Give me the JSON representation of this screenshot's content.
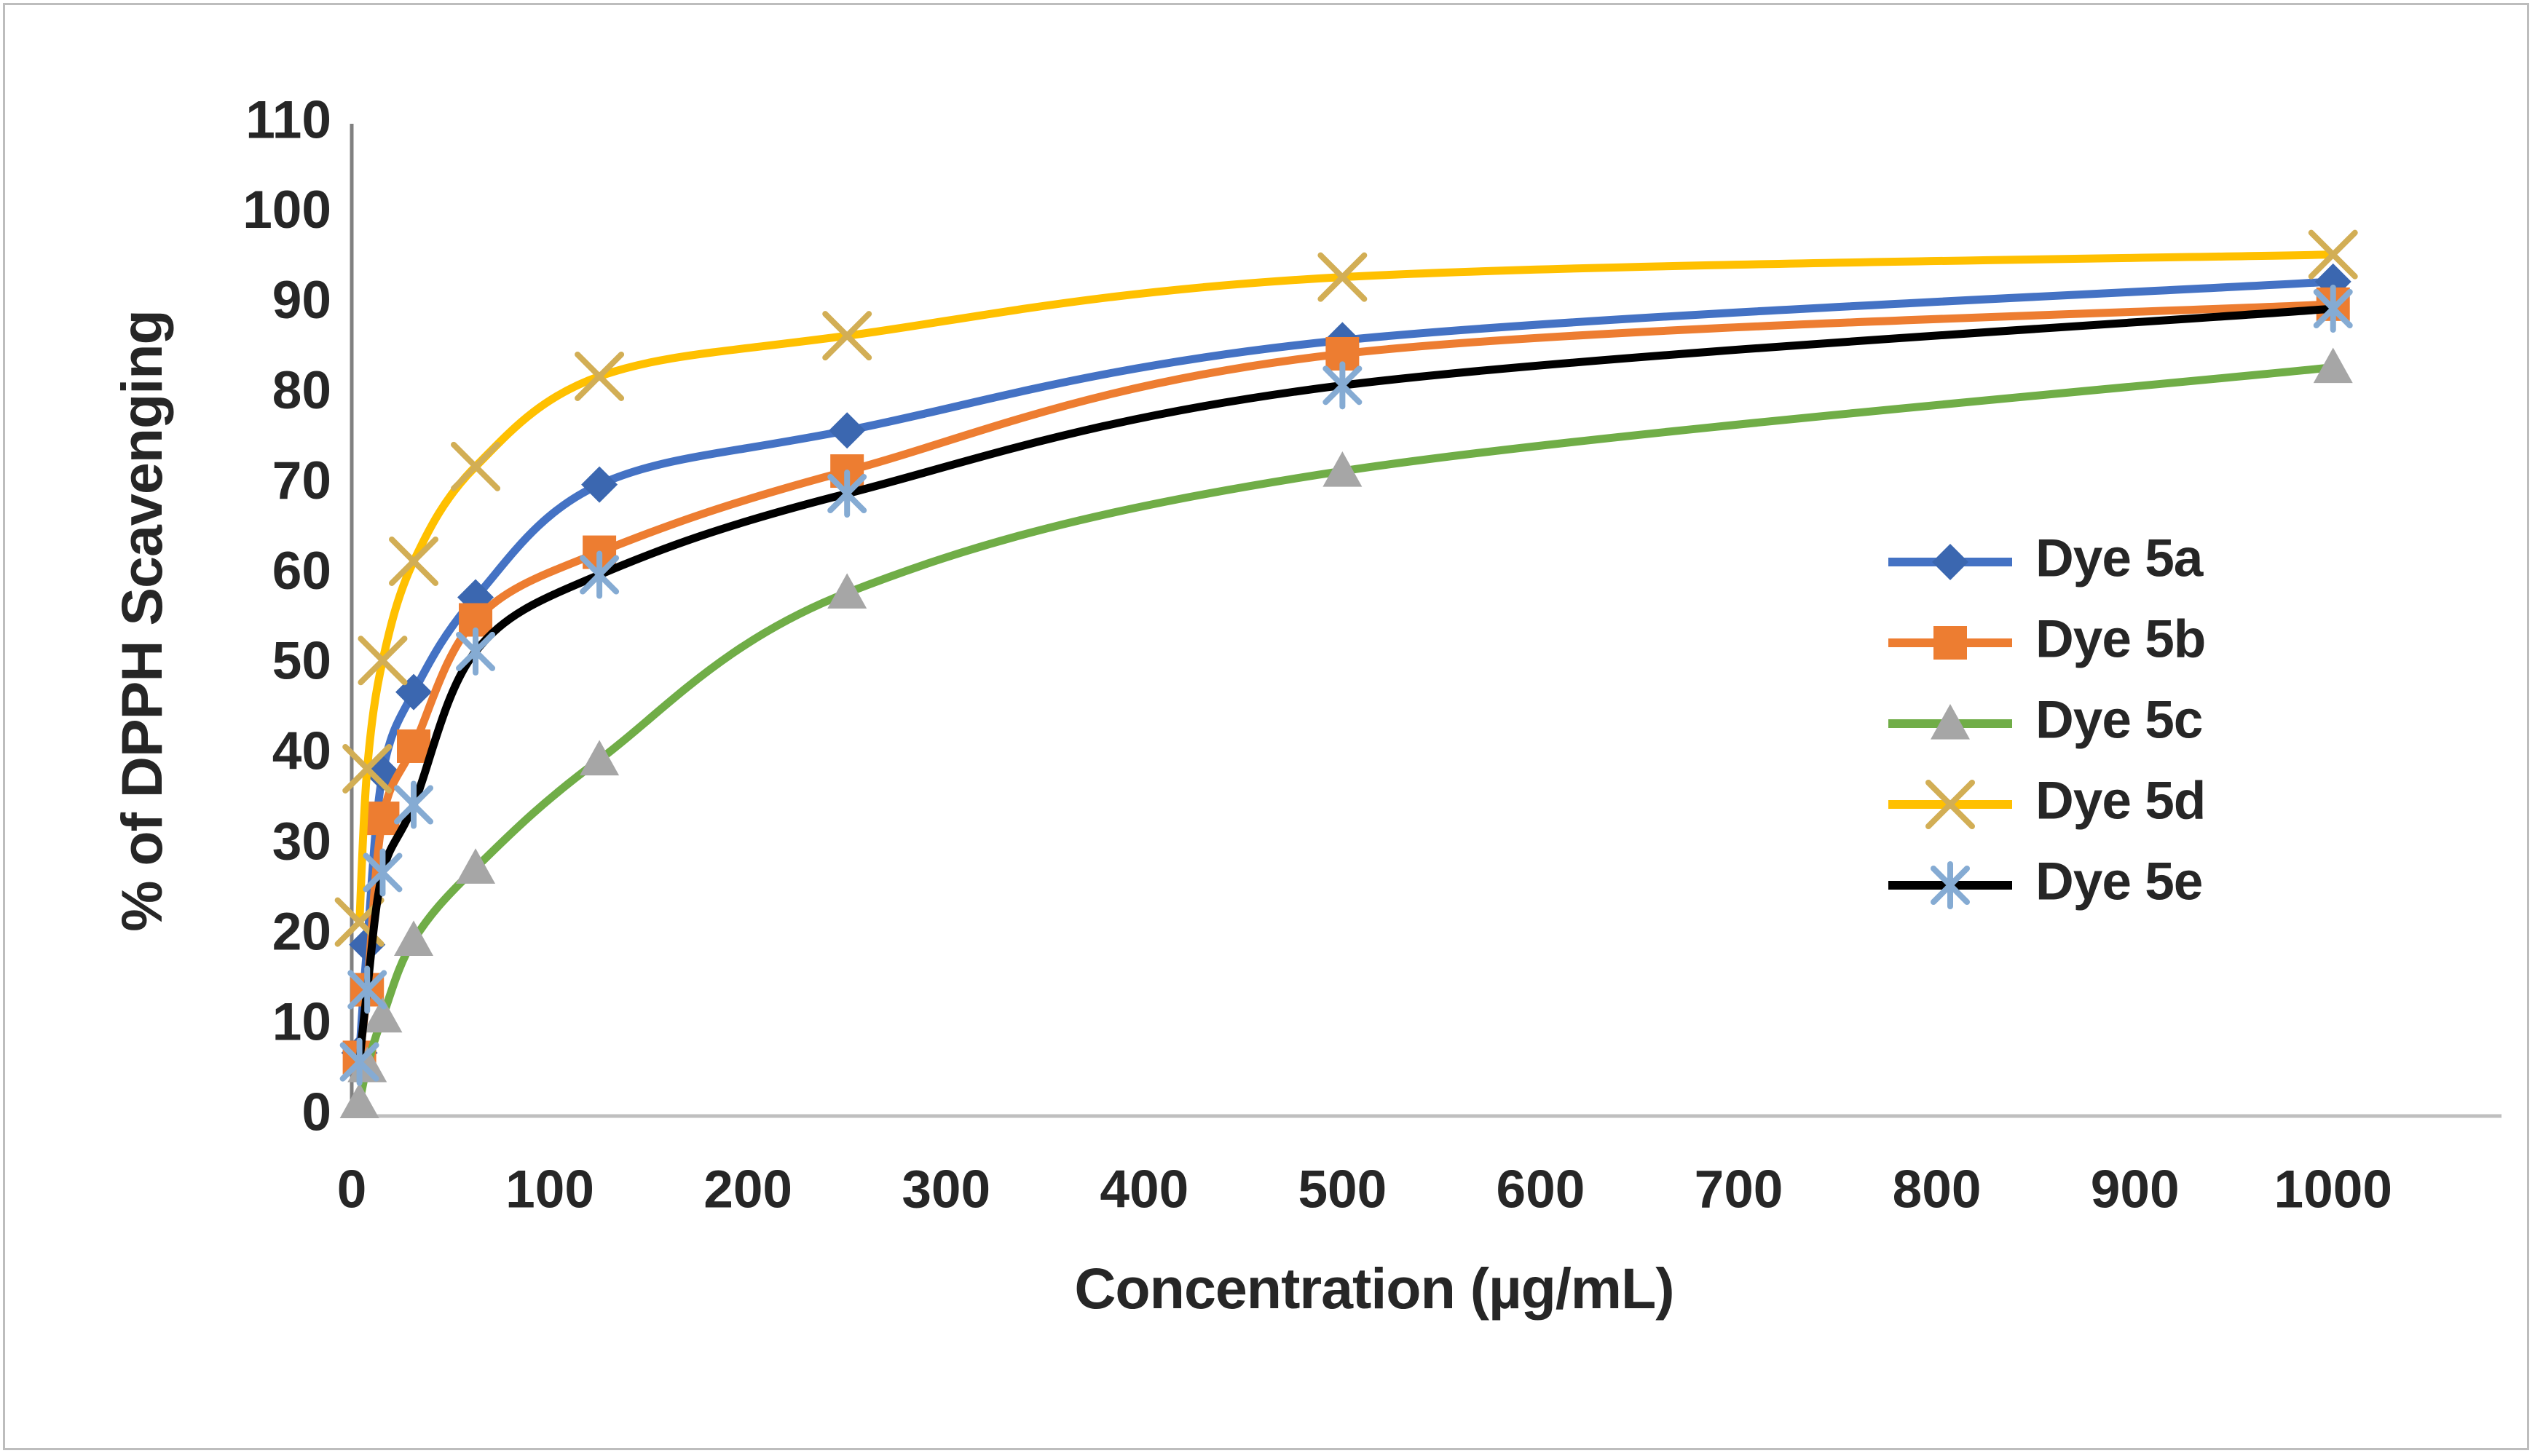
{
  "chart_data": {
    "type": "line",
    "title": "",
    "xlabel": "Concentration (µg/mL)",
    "ylabel": "% of DPPH  Scavenging",
    "x": [
      3.9,
      7.8,
      15.6,
      31.25,
      62.5,
      125,
      250,
      500,
      1000
    ],
    "x_tick_labels": [
      "0",
      "100",
      "200",
      "300",
      "400",
      "500",
      "600",
      "700",
      "800",
      "900",
      "1000"
    ],
    "x_ticks": [
      0,
      100,
      200,
      300,
      400,
      500,
      600,
      700,
      800,
      900,
      1000
    ],
    "y_tick_labels": [
      "0",
      "10",
      "20",
      "30",
      "40",
      "50",
      "60",
      "70",
      "80",
      "90",
      "100",
      "110"
    ],
    "y_ticks": [
      0,
      10,
      20,
      30,
      40,
      50,
      60,
      70,
      80,
      90,
      100,
      110
    ],
    "xlim": [
      0,
      1085
    ],
    "ylim": [
      0,
      110
    ],
    "grid": false,
    "smooth_lines": true,
    "legend_position": "middle-right",
    "series": [
      {
        "name": "Dye 5a",
        "line_color": "#4472C4",
        "marker": "diamond",
        "marker_color": "#3B67B0",
        "values": [
          7,
          19,
          38,
          47,
          57.5,
          70,
          76,
          86,
          92.5
        ]
      },
      {
        "name": "Dye 5b",
        "line_color": "#ED7D31",
        "marker": "square",
        "marker_color": "#ED7D31",
        "values": [
          6.5,
          14,
          33,
          41,
          55,
          62.5,
          71.5,
          84.5,
          90
        ]
      },
      {
        "name": "Dye 5c",
        "line_color": "#70AD47",
        "marker": "triangle",
        "marker_color": "#A6A6A6",
        "values": [
          1.5,
          5.5,
          11,
          19.5,
          27.5,
          39.5,
          58,
          71.5,
          83
        ]
      },
      {
        "name": "Dye 5d",
        "line_color": "#FFC000",
        "marker": "x",
        "marker_color": "#D2AE55",
        "values": [
          21.5,
          38.5,
          50.5,
          61.5,
          72,
          82,
          86.5,
          93,
          95.5
        ]
      },
      {
        "name": "Dye 5e",
        "line_color": "#000000",
        "marker": "asterisk",
        "marker_color": "#85ABD3",
        "values": [
          6,
          14,
          27,
          34.5,
          51.5,
          60,
          69,
          81,
          89.5
        ]
      }
    ]
  }
}
